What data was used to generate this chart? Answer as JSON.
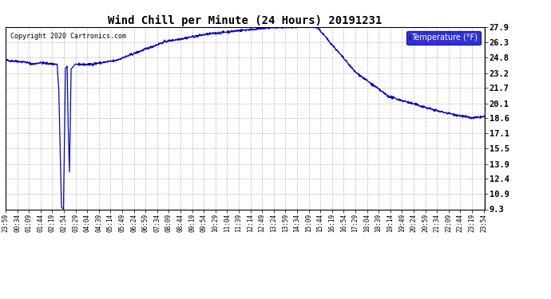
{
  "title": "Wind Chill per Minute (24 Hours) 20191231",
  "copyright": "Copyright 2020 Cartronics.com",
  "line_color": "#0000cc",
  "background_color": "#ffffff",
  "plot_bg_color": "#ffffff",
  "grid_color": "#aaaaaa",
  "yticks": [
    9.3,
    10.9,
    12.4,
    13.9,
    15.5,
    17.1,
    18.6,
    20.1,
    21.7,
    23.2,
    24.8,
    26.3,
    27.9
  ],
  "ymin": 9.3,
  "ymax": 27.9,
  "legend_label": "Temperature (°F)",
  "legend_bg": "#0000cc",
  "legend_text_color": "#ffffff",
  "tick_labels": [
    "23:59",
    "00:34",
    "01:09",
    "01:44",
    "02:19",
    "02:54",
    "03:29",
    "04:04",
    "04:39",
    "05:14",
    "05:49",
    "06:24",
    "06:59",
    "07:34",
    "08:09",
    "08:44",
    "09:19",
    "09:54",
    "10:29",
    "11:04",
    "11:39",
    "12:14",
    "12:49",
    "13:24",
    "13:59",
    "14:34",
    "15:09",
    "15:44",
    "16:19",
    "16:54",
    "17:29",
    "18:04",
    "18:39",
    "19:14",
    "19:49",
    "20:24",
    "20:59",
    "21:34",
    "22:09",
    "22:44",
    "23:19",
    "23:54"
  ]
}
